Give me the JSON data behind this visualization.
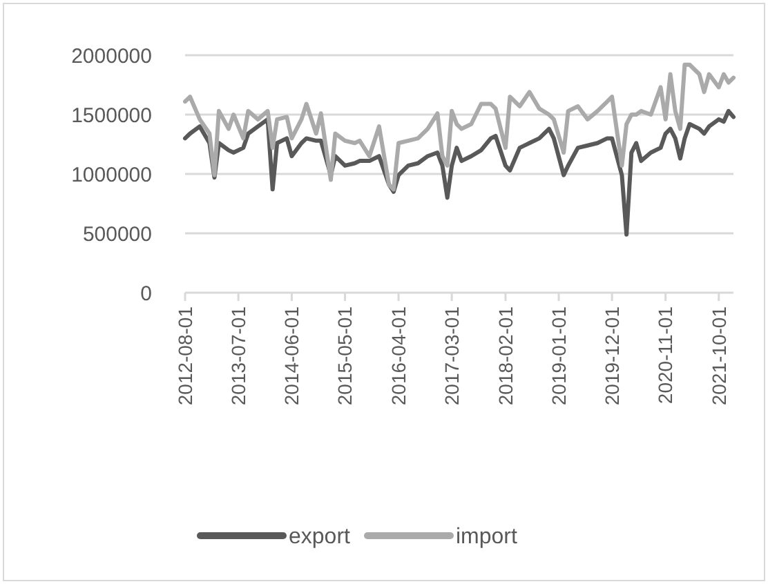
{
  "chart_data": {
    "type": "line",
    "x": [
      "2012-08",
      "2012-09",
      "2012-11",
      "2013-01",
      "2013-02",
      "2013-03",
      "2013-05",
      "2013-06",
      "2013-08",
      "2013-09",
      "2013-11",
      "2014-01",
      "2014-02",
      "2014-03",
      "2014-05",
      "2014-06",
      "2014-08",
      "2014-09",
      "2014-11",
      "2014-12",
      "2015-02",
      "2015-03",
      "2015-05",
      "2015-07",
      "2015-08",
      "2015-10",
      "2015-12",
      "2016-02",
      "2016-03",
      "2016-04",
      "2016-06",
      "2016-08",
      "2016-10",
      "2016-12",
      "2017-01",
      "2017-02",
      "2017-03",
      "2017-04",
      "2017-05",
      "2017-07",
      "2017-09",
      "2017-11",
      "2017-12",
      "2018-02",
      "2018-03",
      "2018-05",
      "2018-07",
      "2018-09",
      "2018-11",
      "2018-12",
      "2019-02",
      "2019-03",
      "2019-05",
      "2019-07",
      "2019-09",
      "2019-11",
      "2019-12",
      "2020-02",
      "2020-03",
      "2020-04",
      "2020-05",
      "2020-06",
      "2020-08",
      "2020-10",
      "2020-11",
      "2020-12",
      "2021-01",
      "2021-02",
      "2021-03",
      "2021-04",
      "2021-06",
      "2021-07",
      "2021-08",
      "2021-10",
      "2021-11",
      "2021-12",
      "2022-01"
    ],
    "series": [
      {
        "name": "export",
        "color": "#595959",
        "values": [
          1300000,
          1340000,
          1400000,
          1260000,
          970000,
          1260000,
          1200000,
          1180000,
          1220000,
          1340000,
          1400000,
          1460000,
          870000,
          1260000,
          1300000,
          1150000,
          1260000,
          1300000,
          1280000,
          1280000,
          990000,
          1150000,
          1070000,
          1090000,
          1110000,
          1110000,
          1150000,
          910000,
          850000,
          990000,
          1070000,
          1090000,
          1150000,
          1180000,
          1070000,
          800000,
          1070000,
          1220000,
          1110000,
          1150000,
          1200000,
          1300000,
          1320000,
          1070000,
          1030000,
          1220000,
          1260000,
          1300000,
          1380000,
          1300000,
          990000,
          1070000,
          1220000,
          1240000,
          1260000,
          1300000,
          1300000,
          990000,
          490000,
          1180000,
          1260000,
          1110000,
          1180000,
          1220000,
          1340000,
          1380000,
          1300000,
          1130000,
          1300000,
          1420000,
          1380000,
          1340000,
          1400000,
          1460000,
          1440000,
          1530000,
          1480000
        ]
      },
      {
        "name": "import",
        "color": "#aaaaaa",
        "values": [
          1610000,
          1650000,
          1460000,
          1340000,
          990000,
          1530000,
          1380000,
          1500000,
          1300000,
          1530000,
          1460000,
          1530000,
          1220000,
          1460000,
          1480000,
          1300000,
          1460000,
          1590000,
          1340000,
          1510000,
          950000,
          1340000,
          1280000,
          1260000,
          1280000,
          1150000,
          1400000,
          910000,
          870000,
          1260000,
          1280000,
          1300000,
          1380000,
          1510000,
          1150000,
          1070000,
          1530000,
          1420000,
          1380000,
          1420000,
          1590000,
          1590000,
          1550000,
          1220000,
          1650000,
          1570000,
          1690000,
          1550000,
          1500000,
          1460000,
          1180000,
          1530000,
          1570000,
          1460000,
          1530000,
          1610000,
          1650000,
          1070000,
          1420000,
          1500000,
          1500000,
          1530000,
          1500000,
          1730000,
          1460000,
          1840000,
          1530000,
          1380000,
          1920000,
          1920000,
          1840000,
          1690000,
          1840000,
          1730000,
          1840000,
          1770000,
          1810000
        ]
      }
    ],
    "xlim": [
      "2012-08",
      "2022-01"
    ],
    "xticks": [
      "2012-08-01",
      "2013-07-01",
      "2014-06-01",
      "2015-05-01",
      "2016-04-01",
      "2017-03-01",
      "2018-02-01",
      "2019-01-01",
      "2019-12-01",
      "2020-11-01",
      "2021-10-01"
    ],
    "ylim": [
      0,
      2000000
    ],
    "yticks": [
      0,
      500000,
      1000000,
      1500000,
      2000000
    ],
    "grid": "y",
    "legend": "bottom",
    "marker": "none",
    "line_style": "solid"
  }
}
